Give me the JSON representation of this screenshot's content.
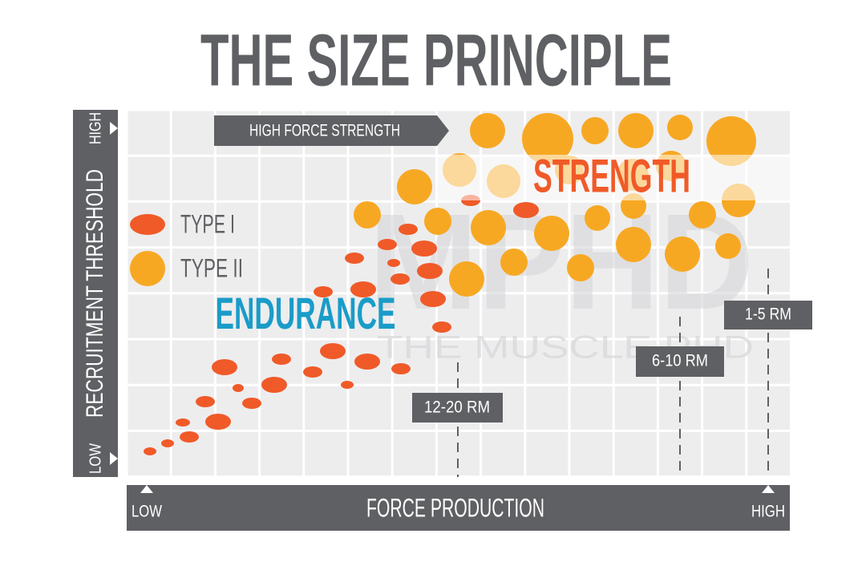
{
  "title": "THE SIZE PRINCIPLE",
  "y_axis": {
    "label": "RECRUITMENT THRESHOLD",
    "high": "HIGH",
    "low": "LOW"
  },
  "x_axis": {
    "label": "FORCE PRODUCTION",
    "low": "LOW",
    "high": "HIGH"
  },
  "banner": "HIGH FORCE STRENGTH",
  "zones": {
    "strength": "STRENGTH",
    "endurance": "ENDURANCE"
  },
  "legend": [
    "TYPE I",
    "TYPE II"
  ],
  "rep_ranges": [
    "12-20 RM",
    "6-10 RM",
    "1-5 RM"
  ],
  "watermark": {
    "logo": "MPHD",
    "name": "THE MUSCLE PHD"
  }
}
